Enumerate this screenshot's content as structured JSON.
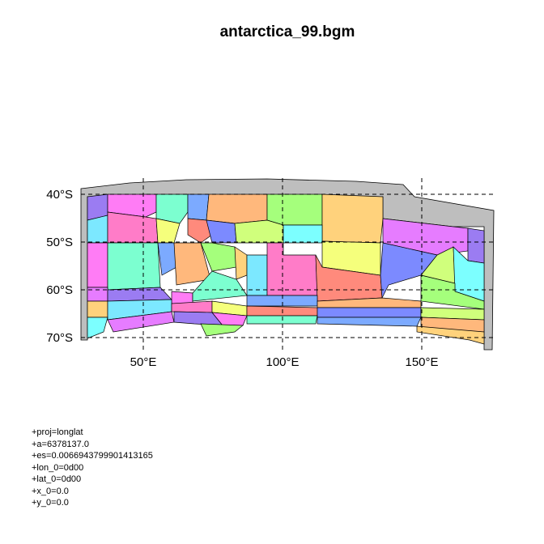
{
  "title": "antarctica_99.bgm",
  "axis": {
    "x_ticks": [
      "50°E",
      "100°E",
      "150°E"
    ],
    "y_ticks": [
      "40°S",
      "50°S",
      "60°S",
      "70°S"
    ]
  },
  "projection_lines": [
    "+proj=longlat",
    "+a=6378137.0",
    "+es=0.0066943799901413165",
    "+lon_0=0d00",
    "+lat_0=0d00",
    "+x_0=0.0",
    "+y_0=0.0"
  ],
  "chart_data": {
    "type": "map",
    "title": "antarctica_99.bgm",
    "x_ticks": [
      50,
      100,
      150
    ],
    "y_ticks": [
      -40,
      -50,
      -60,
      -70
    ],
    "grid": true,
    "colors": {
      "frame": "#bebebe",
      "gridline": "#000000",
      "palette": [
        "#9b7cf2",
        "#ff7cf5",
        "#7cffd0",
        "#7caaff",
        "#ffb87c",
        "#a5ff7c",
        "#ffd27c",
        "#7ce8ff",
        "#ff7cc8",
        "#f5ff7c",
        "#ff8a7c",
        "#7c8aff",
        "#d0ff7c",
        "#7cffff",
        "#e67cff"
      ]
    }
  }
}
